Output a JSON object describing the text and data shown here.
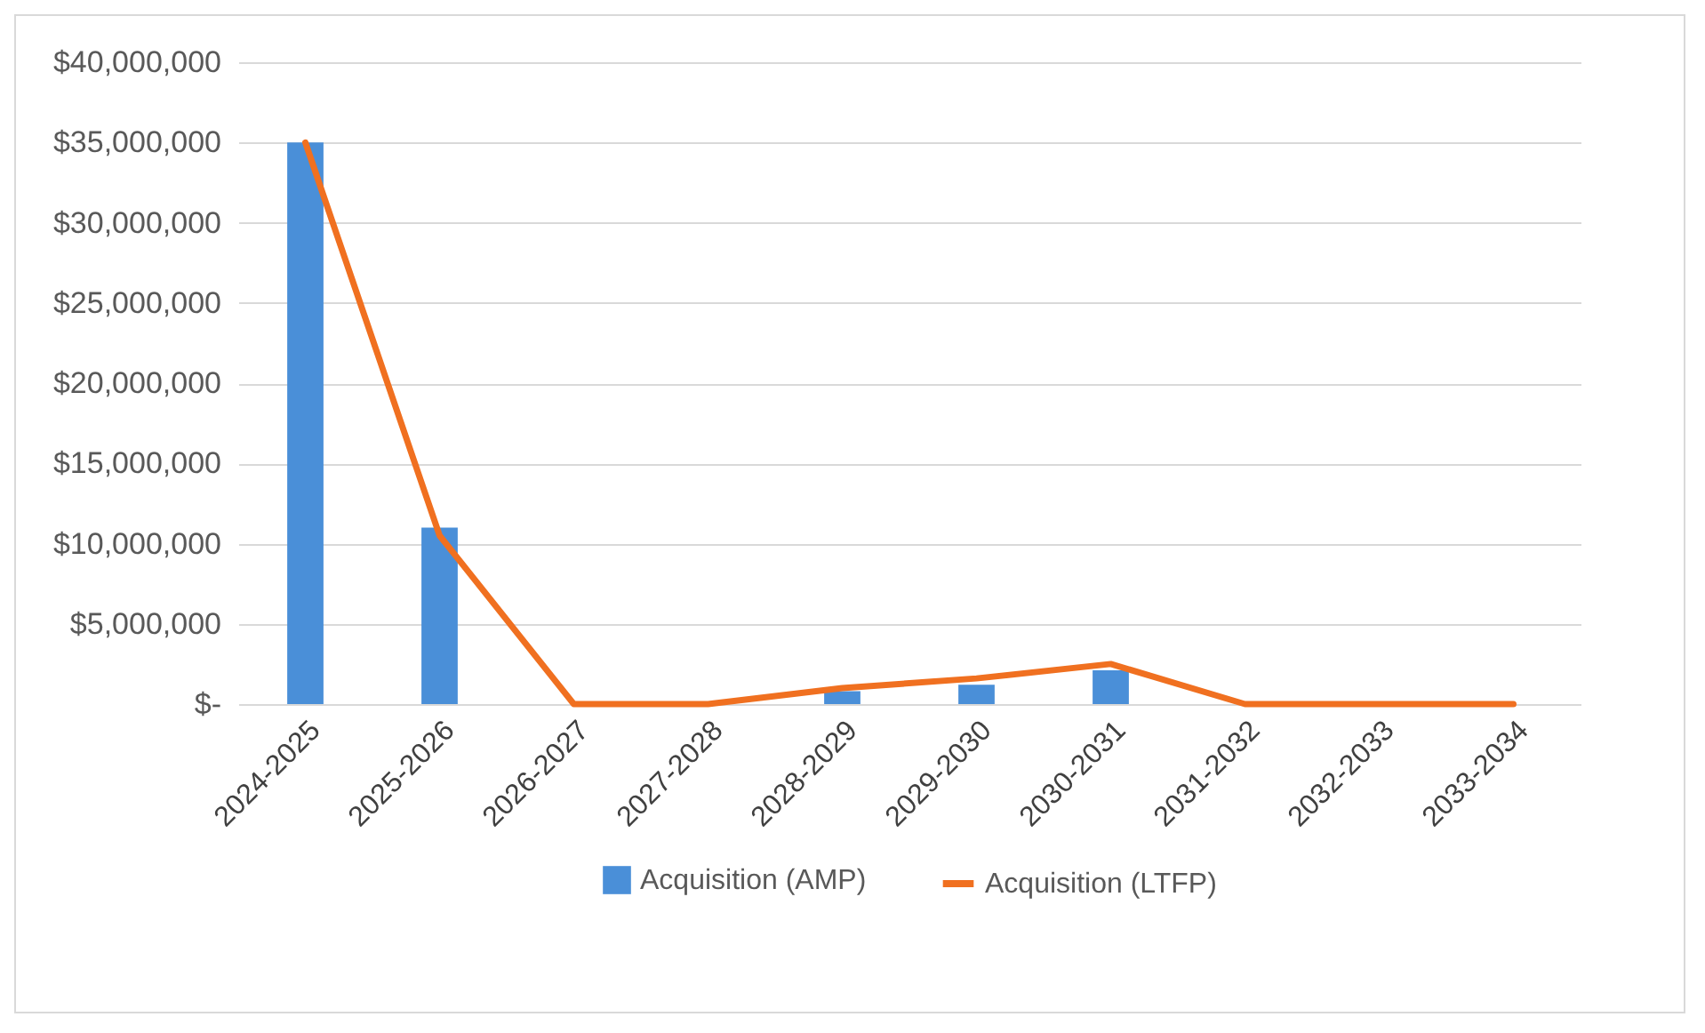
{
  "chart_data": {
    "type": "bar",
    "categories": [
      "2024-2025",
      "2025-2026",
      "2026-2027",
      "2027-2028",
      "2028-2029",
      "2029-2030",
      "2030-2031",
      "2031-2032",
      "2032-2033",
      "2033-2034"
    ],
    "series": [
      {
        "name": "Acquisition (AMP)",
        "color": "#4a8fd8",
        "values": [
          35000000,
          11000000,
          0,
          0,
          800000,
          1200000,
          2100000,
          0,
          0,
          0
        ]
      },
      {
        "name": "Acquisition (LTFP)",
        "type": "line",
        "color": "#f07020",
        "values": [
          35000000,
          10500000,
          0,
          0,
          1000000,
          1600000,
          2500000,
          0,
          0,
          0
        ]
      }
    ],
    "ylim": [
      0,
      40000000
    ],
    "yticks": [
      {
        "value": 0,
        "label": "$-"
      },
      {
        "value": 5000000,
        "label": "$5,000,000"
      },
      {
        "value": 10000000,
        "label": "$10,000,000"
      },
      {
        "value": 15000000,
        "label": "$15,000,000"
      },
      {
        "value": 20000000,
        "label": "$20,000,000"
      },
      {
        "value": 25000000,
        "label": "$25,000,000"
      },
      {
        "value": 30000000,
        "label": "$30,000,000"
      },
      {
        "value": 35000000,
        "label": "$35,000,000"
      },
      {
        "value": 40000000,
        "label": "$40,000,000"
      }
    ],
    "grid": "y",
    "legend": "bottom",
    "marker": "none"
  }
}
